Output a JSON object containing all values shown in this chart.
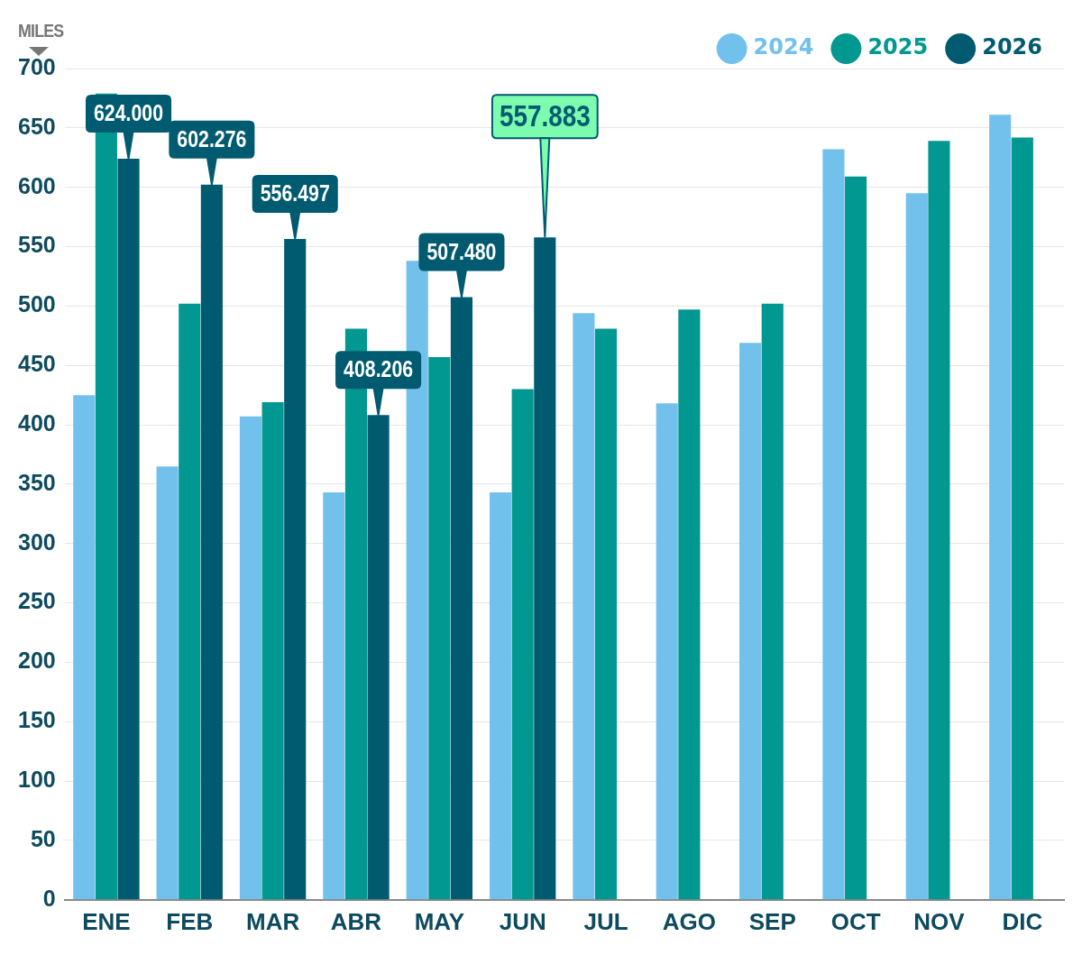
{
  "chart_data": {
    "type": "bar",
    "ylabel": "MILES",
    "categories": [
      "ENE",
      "FEB",
      "MAR",
      "ABR",
      "MAY",
      "JUN",
      "JUL",
      "AGO",
      "SEP",
      "OCT",
      "NOV",
      "DIC"
    ],
    "series": [
      {
        "name": "2024",
        "color": "#72c0ec",
        "values": [
          425,
          365,
          407,
          343,
          538,
          343,
          494,
          418,
          469,
          632,
          595,
          661
        ]
      },
      {
        "name": "2025",
        "color": "#009890",
        "values": [
          679,
          502,
          419,
          481,
          457,
          430,
          481,
          497,
          502,
          609,
          639,
          642
        ]
      },
      {
        "name": "2026",
        "color": "#005b70",
        "values": [
          624,
          602.276,
          556.497,
          408.206,
          507.48,
          557.883,
          null,
          null,
          null,
          null,
          null,
          null
        ],
        "value_labels": [
          "624.000",
          "602.276",
          "556.497",
          "408.206",
          "507.480",
          "557.883",
          null,
          null,
          null,
          null,
          null,
          null
        ]
      }
    ],
    "ylim": [
      0,
      700
    ],
    "yticks": [
      0,
      50,
      100,
      150,
      200,
      250,
      300,
      350,
      400,
      450,
      500,
      550,
      600,
      650,
      700
    ],
    "grid": "y",
    "legend": "top right"
  }
}
